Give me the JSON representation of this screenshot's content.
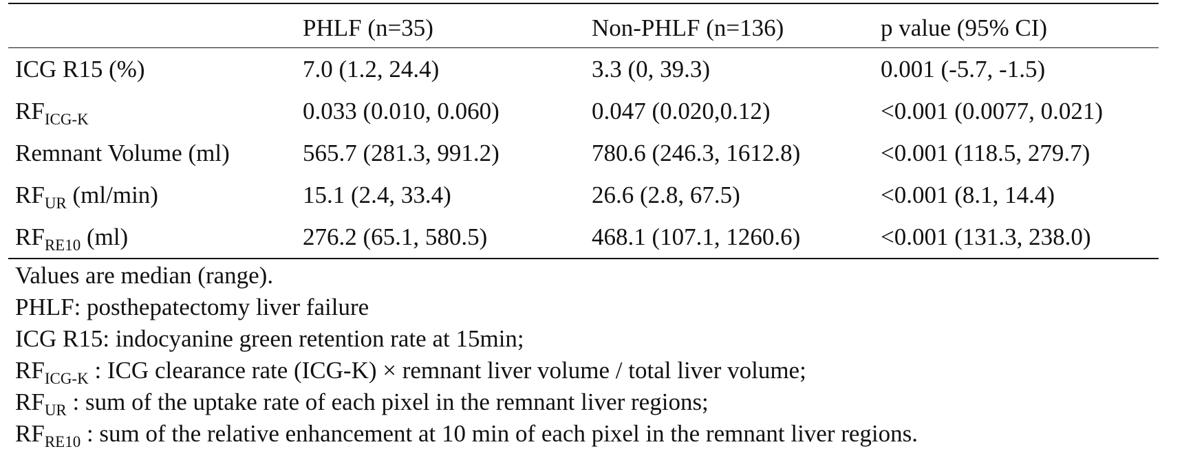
{
  "table": {
    "headers": [
      "",
      "PHLF (n=35)",
      "Non-PHLF (n=136)",
      "p value (95% CI)"
    ],
    "rows": [
      {
        "label_main": "ICG R15 (%)",
        "label_sub": "",
        "label_suffix": "",
        "phlf": "7.0 (1.2, 24.4)",
        "non_phlf": "3.3 (0, 39.3)",
        "p_value": "0.001 (-5.7, -1.5)"
      },
      {
        "label_main": "RF",
        "label_sub": "ICG-K",
        "label_suffix": "",
        "phlf": "0.033 (0.010, 0.060)",
        "non_phlf": "0.047 (0.020,0.12)",
        "p_value": "<0.001 (0.0077, 0.021)"
      },
      {
        "label_main": "Remnant Volume (ml)",
        "label_sub": "",
        "label_suffix": "",
        "phlf": "565.7 (281.3, 991.2)",
        "non_phlf": "780.6 (246.3, 1612.8)",
        "p_value": "<0.001 (118.5, 279.7)"
      },
      {
        "label_main": "RF",
        "label_sub": "UR",
        "label_suffix": " (ml/min)",
        "phlf": "15.1 (2.4, 33.4)",
        "non_phlf": "26.6 (2.8, 67.5)",
        "p_value": "<0.001 (8.1, 14.4)"
      },
      {
        "label_main": "RF",
        "label_sub": "RE10",
        "label_suffix": " (ml)",
        "phlf": "276.2 (65.1, 580.5)",
        "non_phlf": "468.1 (107.1, 1260.6)",
        "p_value": "<0.001 (131.3, 238.0)"
      }
    ]
  },
  "notes": {
    "line1": "Values are median (range).",
    "line2": "PHLF: posthepatectomy liver failure",
    "line3": "ICG R15: indocyanine green retention rate at 15min;",
    "line4_main": "RF",
    "line4_sub": "ICG-K",
    "line4_text": " : ICG clearance rate (ICG-K) × remnant liver volume / total liver volume;",
    "line5_main": "RF",
    "line5_sub": "UR",
    "line5_text": " : sum of the uptake rate of each pixel in the remnant liver regions;",
    "line6_main": "RF",
    "line6_sub": "RE10",
    "line6_text": " : sum of the relative enhancement at 10 min of each pixel in the remnant liver regions."
  }
}
